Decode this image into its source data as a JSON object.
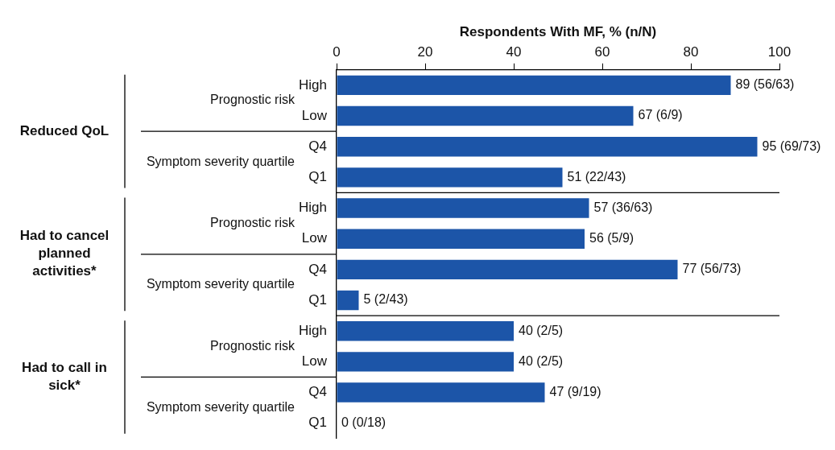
{
  "chart_data": {
    "type": "bar",
    "orientation": "horizontal",
    "xlabel": "Respondents With MF, % (n/N)",
    "categories": [
      "High",
      "Low",
      "Q4",
      "Q1",
      "High",
      "Low",
      "Q4",
      "Q1",
      "High",
      "Low",
      "Q4",
      "Q1"
    ],
    "values": [
      89,
      67,
      95,
      51,
      57,
      56,
      77,
      5,
      40,
      40,
      47,
      0
    ],
    "value_labels": [
      "89 (56/63)",
      "67 (6/9)",
      "95 (69/73)",
      "51 (22/43)",
      "57 (36/63)",
      "56 (5/9)",
      "77 (56/73)",
      "5 (2/43)",
      "40 (2/5)",
      "40 (2/5)",
      "47 (9/19)",
      "0 (0/18)"
    ],
    "color": "#1c55a8",
    "xlim": [
      0,
      100
    ],
    "xticks": [
      0,
      20,
      40,
      60,
      80,
      100
    ],
    "annotations": [
      "Reduced QoL",
      "Prognostic risk",
      "Symptom severity quartile",
      "Had to cancel planned activities*",
      "Prognostic risk",
      "Symptom severity quartile",
      "Had to call in sick*",
      "Prognostic risk",
      "Symptom severity quartile"
    ]
  }
}
